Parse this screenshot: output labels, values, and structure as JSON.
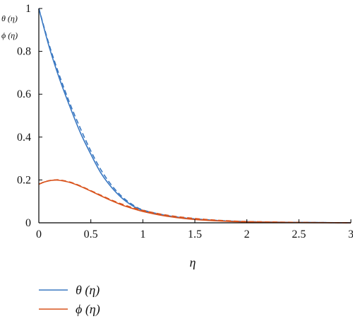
{
  "chart_data": {
    "type": "line",
    "xlabel": "η",
    "ylabel_lines": [
      "θ (η)",
      "ϕ (η)"
    ],
    "xlim": [
      0,
      3
    ],
    "ylim": [
      0,
      1
    ],
    "xticks": [
      0,
      0.5,
      1,
      1.5,
      2,
      2.5,
      3
    ],
    "xtick_labels": [
      "0",
      "0.5",
      "1",
      "1.5",
      "2",
      "2.5",
      "3"
    ],
    "yticks": [
      0,
      0.2,
      0.4,
      0.6,
      0.8,
      1
    ],
    "ytick_labels": [
      "0",
      "0.2",
      "0.4",
      "0.6",
      "0.8",
      "1"
    ],
    "grid": false,
    "legend_position": "bottom-left",
    "colors": {
      "theta": "#3a78c2",
      "phi": "#d9541e"
    },
    "series": [
      {
        "name": "θ (η)",
        "color": "#3a78c2",
        "style": "solid",
        "x": [
          0,
          0.1,
          0.2,
          0.3,
          0.4,
          0.5,
          0.6,
          0.7,
          0.8,
          0.9,
          1.0,
          1.2,
          1.4,
          1.6,
          1.8,
          2.0,
          2.25,
          2.5,
          2.75,
          3.0
        ],
        "y": [
          1.0,
          0.82,
          0.67,
          0.54,
          0.42,
          0.32,
          0.23,
          0.165,
          0.115,
          0.08,
          0.058,
          0.035,
          0.021,
          0.013,
          0.008,
          0.005,
          0.003,
          0.002,
          0.001,
          0.0
        ]
      },
      {
        "name": "θ (η) dashed",
        "color": "#3a78c2",
        "style": "dashed",
        "x": [
          0,
          0.1,
          0.2,
          0.3,
          0.4,
          0.5,
          0.6,
          0.7,
          0.8,
          0.9,
          1.0,
          1.2,
          1.4,
          1.6,
          1.8,
          2.0,
          2.25,
          2.5,
          2.75,
          3.0
        ],
        "y": [
          1.0,
          0.83,
          0.685,
          0.555,
          0.44,
          0.335,
          0.245,
          0.175,
          0.122,
          0.085,
          0.06,
          0.037,
          0.023,
          0.015,
          0.009,
          0.006,
          0.003,
          0.002,
          0.001,
          0.0
        ]
      },
      {
        "name": "ϕ (η)",
        "color": "#d9541e",
        "style": "solid",
        "x": [
          0,
          0.05,
          0.1,
          0.15,
          0.2,
          0.3,
          0.4,
          0.5,
          0.6,
          0.7,
          0.8,
          0.9,
          1.0,
          1.2,
          1.4,
          1.6,
          1.8,
          2.0,
          2.5,
          3.0
        ],
        "y": [
          0.18,
          0.19,
          0.196,
          0.199,
          0.198,
          0.188,
          0.17,
          0.148,
          0.125,
          0.103,
          0.083,
          0.067,
          0.053,
          0.033,
          0.02,
          0.012,
          0.007,
          0.004,
          0.001,
          0.0
        ]
      },
      {
        "name": "ϕ (η) dashed",
        "color": "#d9541e",
        "style": "dashed",
        "x": [
          0,
          0.05,
          0.1,
          0.15,
          0.2,
          0.3,
          0.4,
          0.5,
          0.6,
          0.7,
          0.8,
          0.9,
          1.0,
          1.2,
          1.4,
          1.6,
          1.8,
          2.0,
          2.5,
          3.0
        ],
        "y": [
          0.18,
          0.19,
          0.197,
          0.2,
          0.2,
          0.19,
          0.172,
          0.15,
          0.128,
          0.106,
          0.087,
          0.071,
          0.058,
          0.038,
          0.025,
          0.016,
          0.01,
          0.006,
          0.002,
          0.0
        ]
      }
    ],
    "legend": [
      {
        "label": "θ (η)",
        "color": "#3a78c2"
      },
      {
        "label": "ϕ (η)",
        "color": "#d9541e"
      }
    ]
  }
}
